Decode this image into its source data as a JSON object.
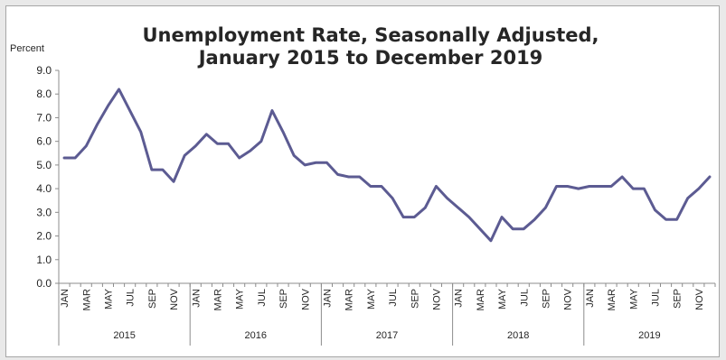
{
  "chart_data": {
    "type": "line",
    "title_line1": "Unemployment Rate, Seasonally Adjusted,",
    "title_line2": "January 2015 to December 2019",
    "ylabel": "Percent",
    "xlabel": "",
    "ylim": [
      0,
      9
    ],
    "yticks": [
      "0.0",
      "1.0",
      "2.0",
      "3.0",
      "4.0",
      "5.0",
      "6.0",
      "7.0",
      "8.0",
      "9.0"
    ],
    "grid": false,
    "legend": "none",
    "line_color": "#5c5b92",
    "month_labels": [
      "JAN",
      "MAR",
      "MAY",
      "JUL",
      "SEP",
      "NOV"
    ],
    "years": [
      "2015",
      "2016",
      "2017",
      "2018",
      "2019"
    ],
    "series": [
      {
        "values": [
          5.3,
          5.3,
          5.8,
          6.7,
          7.5,
          8.2,
          7.3,
          6.4,
          4.8,
          4.8,
          4.3,
          5.4,
          5.8,
          6.3,
          5.9,
          5.9,
          5.3,
          5.6,
          6.0,
          7.3,
          6.4,
          5.4,
          5.0,
          5.1,
          5.1,
          4.6,
          4.5,
          4.5,
          4.1,
          4.1,
          3.6,
          2.8,
          2.8,
          3.2,
          4.1,
          3.6,
          3.2,
          2.8,
          2.3,
          1.8,
          2.8,
          2.3,
          2.3,
          2.7,
          3.2,
          4.1,
          4.1,
          4.0,
          4.1,
          4.1,
          4.1,
          4.5,
          4.0,
          4.0,
          3.1,
          2.7,
          2.7,
          3.6,
          4.0,
          4.5
        ]
      }
    ]
  }
}
